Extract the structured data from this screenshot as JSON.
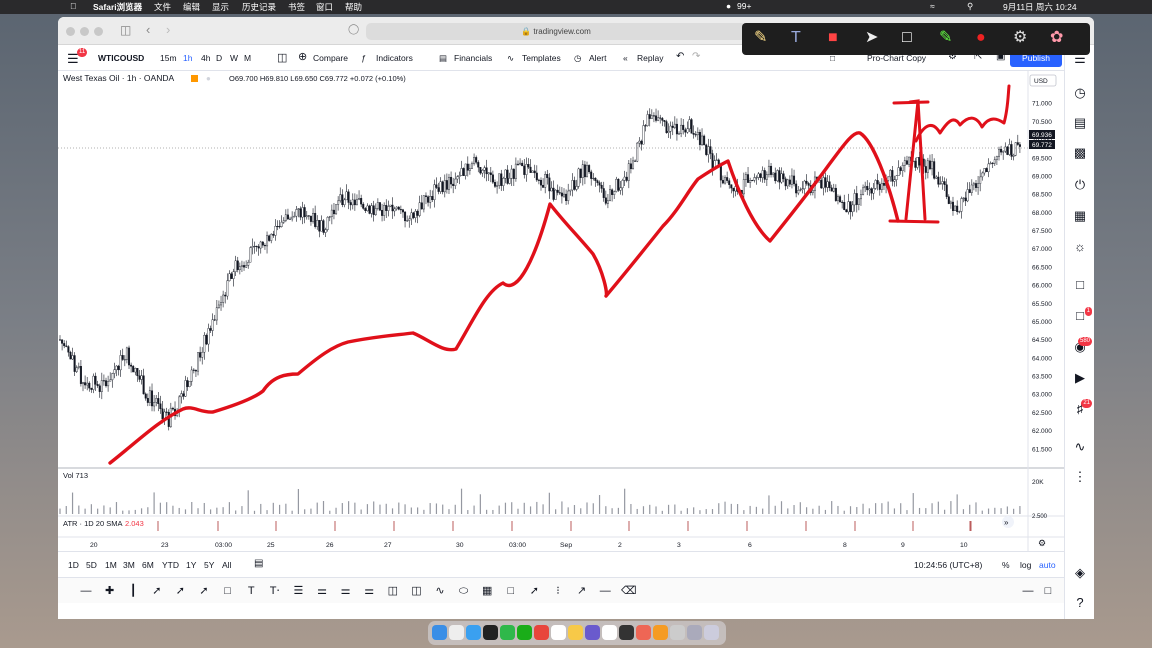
{
  "menubar": {
    "app": "Safari浏览器",
    "items": [
      "文件",
      "编辑",
      "显示",
      "历史记录",
      "书签",
      "窗口",
      "帮助"
    ],
    "badge": "99+",
    "datetime": "9月11日 周六  10:24"
  },
  "safari": {
    "url": "tradingview.com"
  },
  "tv": {
    "menu_badge": "11",
    "symbol": "WTICOUSD",
    "intervals": [
      "15m",
      "1h",
      "4h",
      "D",
      "W",
      "M"
    ],
    "compare": "Compare",
    "indicators": "Indicators",
    "financials": "Financials",
    "templates": "Templates",
    "alert": "Alert",
    "replay": "Replay",
    "layout": "Pro-Chart Copy",
    "publish": "Publish",
    "legend": {
      "title": "West Texas Oil · 1h · OANDA",
      "ohlc": "O69.700 H69.810 L69.650 C69.772 +0.072 (+0.10%)"
    },
    "currency": "USD",
    "price_labels": [
      "71.000",
      "70.500",
      "70.000",
      "69.500",
      "69.000",
      "68.500",
      "68.000",
      "67.500",
      "67.000",
      "66.500",
      "66.000",
      "65.500",
      "65.000",
      "64.500",
      "64.000",
      "63.500",
      "63.000",
      "62.500",
      "62.000",
      "61.500"
    ],
    "price_tag_1": "69.936",
    "price_tag_2": "69.772",
    "vol_label": "Vol  713",
    "vol_scale": "20K",
    "atr_label": "ATR · 1D 20 SMA",
    "atr_value": "2.043",
    "atr_scale": "2.500",
    "time_labels": [
      "20",
      "23",
      "03:00",
      "25",
      "26",
      "27",
      "30",
      "03:00",
      "Sep",
      "2",
      "3",
      "6",
      "8",
      "9",
      "10"
    ],
    "ranges": [
      "1D",
      "5D",
      "1M",
      "3M",
      "6M",
      "YTD",
      "1Y",
      "5Y",
      "All"
    ],
    "clock": "10:24:56 (UTC+8)",
    "pct": "%",
    "log": "log",
    "auto": "auto",
    "right_badges": {
      "b1": "1",
      "b2": "580",
      "b3": "21"
    }
  },
  "chart_data": {
    "type": "candlestick",
    "title": "West Texas Oil · 1h · OANDA",
    "x_categories": [
      "20",
      "23",
      "03:00",
      "25",
      "26",
      "27",
      "30",
      "03:00",
      "Sep",
      "2",
      "3",
      "6",
      "8",
      "9",
      "10"
    ],
    "ylim": [
      61.0,
      71.5
    ],
    "close_path": [
      64.5,
      63.4,
      63.2,
      64.2,
      63.0,
      62.3,
      63.5,
      65.0,
      66.5,
      67.0,
      67.7,
      68.0,
      67.6,
      68.4,
      68.2,
      68.0,
      67.9,
      68.5,
      68.9,
      69.4,
      68.8,
      69.2,
      69.0,
      68.3,
      69.2,
      68.4,
      69.0,
      70.6,
      70.3,
      70.4,
      69.3,
      68.6,
      69.1,
      69.0,
      68.6,
      68.9,
      68.1,
      68.6,
      69.0,
      69.4,
      69.2,
      68.0,
      68.8,
      69.5,
      69.9
    ],
    "last": 69.772,
    "volume_max_label": "20K",
    "colors": {
      "candle": "#131722",
      "annotation": "#e0101a"
    }
  }
}
